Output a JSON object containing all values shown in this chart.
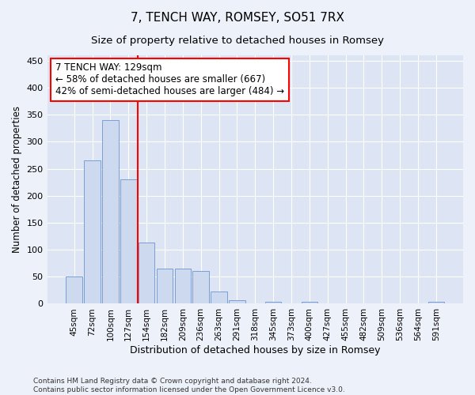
{
  "title": "7, TENCH WAY, ROMSEY, SO51 7RX",
  "subtitle": "Size of property relative to detached houses in Romsey",
  "xlabel": "Distribution of detached houses by size in Romsey",
  "ylabel": "Number of detached properties",
  "categories": [
    "45sqm",
    "72sqm",
    "100sqm",
    "127sqm",
    "154sqm",
    "182sqm",
    "209sqm",
    "236sqm",
    "263sqm",
    "291sqm",
    "318sqm",
    "345sqm",
    "373sqm",
    "400sqm",
    "427sqm",
    "455sqm",
    "482sqm",
    "509sqm",
    "536sqm",
    "564sqm",
    "591sqm"
  ],
  "values": [
    50,
    265,
    340,
    230,
    113,
    65,
    65,
    60,
    23,
    7,
    0,
    4,
    0,
    4,
    0,
    0,
    0,
    0,
    0,
    0,
    3
  ],
  "bar_color": "#cdd9ef",
  "bar_edge_color": "#7a9fd4",
  "vline_x": 3.5,
  "vline_label": "7 TENCH WAY: 129sqm",
  "annotation_line1": "← 58% of detached houses are smaller (667)",
  "annotation_line2": "42% of semi-detached houses are larger (484) →",
  "ylim": [
    0,
    460
  ],
  "yticks": [
    0,
    50,
    100,
    150,
    200,
    250,
    300,
    350,
    400,
    450
  ],
  "footer_line1": "Contains HM Land Registry data © Crown copyright and database right 2024.",
  "footer_line2": "Contains public sector information licensed under the Open Government Licence v3.0.",
  "fig_bg_color": "#edf1f9",
  "plot_bg_color": "#dde5f4",
  "title_fontsize": 11,
  "subtitle_fontsize": 9.5,
  "annotation_fontsize": 8.5,
  "ylabel_fontsize": 8.5,
  "xlabel_fontsize": 9,
  "footer_fontsize": 6.5
}
